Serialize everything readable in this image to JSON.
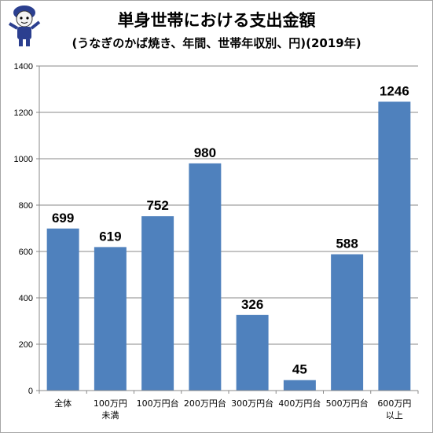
{
  "chart_data": {
    "type": "bar",
    "title": "単身世帯における支出金額",
    "subtitle": "(うなぎのかば焼き、年間、世帯年収別、円)(2019年)",
    "categories": [
      [
        "全体"
      ],
      [
        "100万円",
        "未満"
      ],
      [
        "100万円台"
      ],
      [
        "200万円台"
      ],
      [
        "300万円台"
      ],
      [
        "400万円台"
      ],
      [
        "500万円台"
      ],
      [
        "600万円",
        "以上"
      ]
    ],
    "values": [
      699,
      619,
      752,
      980,
      326,
      45,
      588,
      1246
    ],
    "data_labels": [
      "699",
      "619",
      "752",
      "980",
      "326",
      "45",
      "588",
      "1246"
    ],
    "ylim": [
      0,
      1400
    ],
    "yticks": [
      0,
      200,
      400,
      600,
      800,
      1000,
      1200,
      1400
    ],
    "grid": true,
    "legend": "none",
    "colors": {
      "bar": "#4f81bd",
      "grid": "#888888",
      "axis": "#888888"
    }
  },
  "mascot": {
    "icon": "mascot-character-icon"
  }
}
